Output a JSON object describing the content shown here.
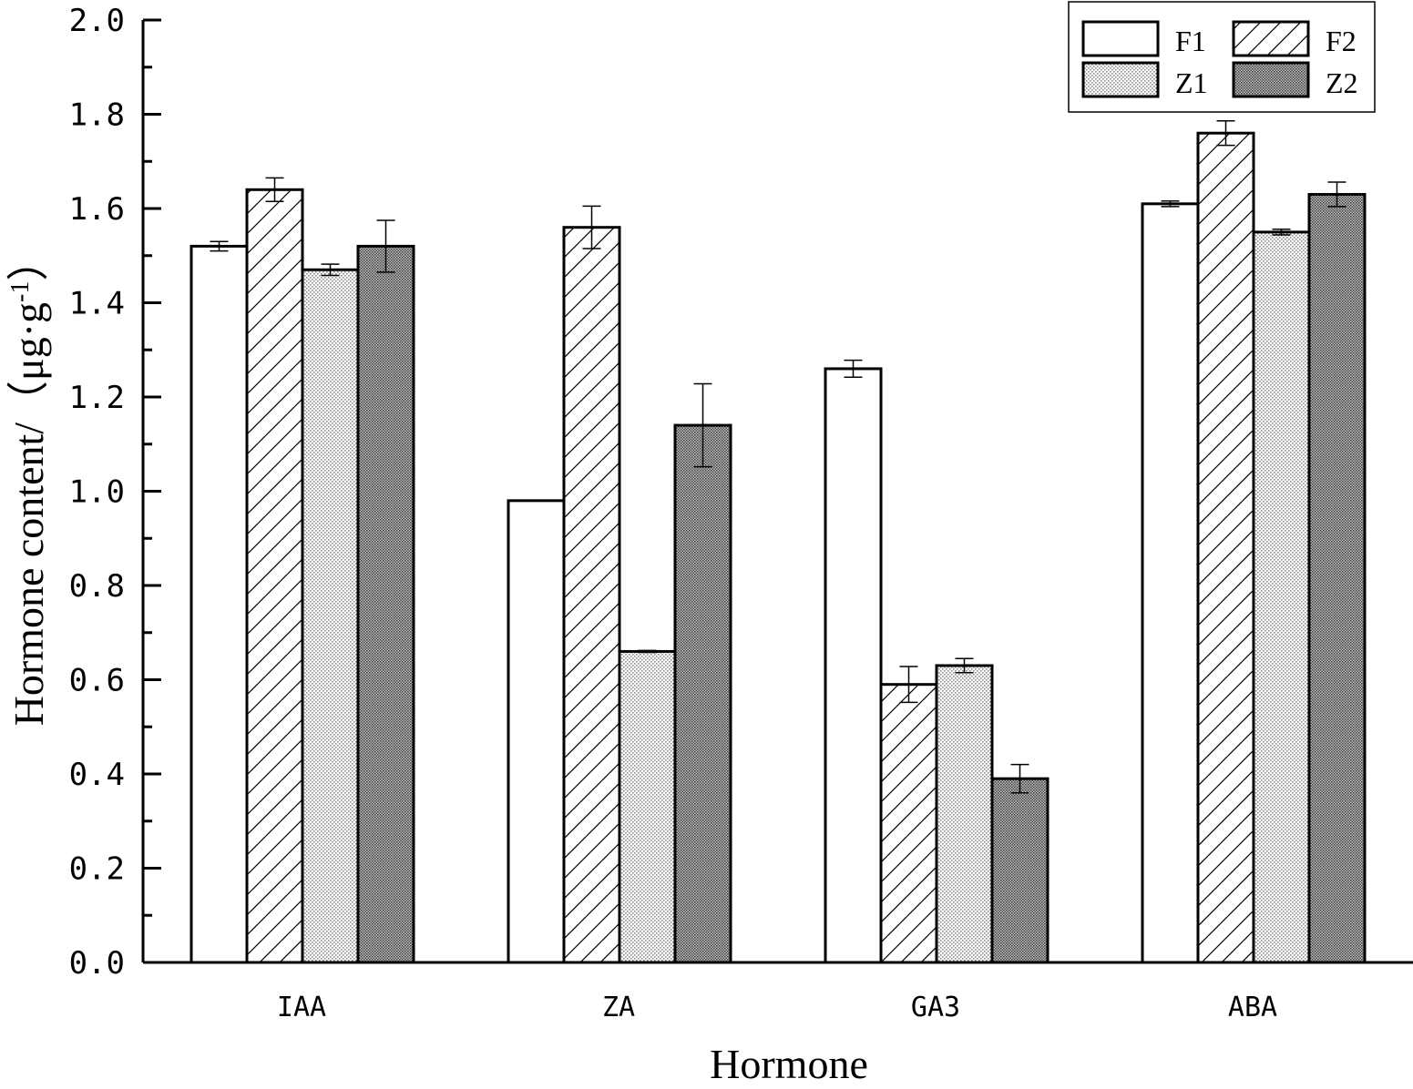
{
  "chart_data": {
    "type": "bar",
    "categories": [
      "IAA",
      "ZA",
      "GA3",
      "ABA"
    ],
    "series": [
      {
        "name": "F1",
        "pattern": "empty",
        "values": [
          1.52,
          0.98,
          1.26,
          1.61
        ],
        "errors": [
          0.01,
          0.0,
          0.018,
          0.006
        ]
      },
      {
        "name": "F2",
        "pattern": "hatch",
        "values": [
          1.64,
          1.56,
          0.59,
          1.76
        ],
        "errors": [
          0.025,
          0.045,
          0.038,
          0.026
        ]
      },
      {
        "name": "Z1",
        "pattern": "dots",
        "values": [
          1.47,
          0.66,
          0.63,
          1.55
        ],
        "errors": [
          0.012,
          0.002,
          0.015,
          0.006
        ]
      },
      {
        "name": "Z2",
        "pattern": "dense",
        "values": [
          1.52,
          1.14,
          0.39,
          1.63
        ],
        "errors": [
          0.055,
          0.088,
          0.03,
          0.026
        ]
      }
    ],
    "xlabel": "Hormone",
    "ylabel": {
      "main": "Hormone content/（μg·g",
      "superscript": "-1",
      "tail": "）"
    },
    "ylim": [
      0,
      2.0
    ],
    "yticks": [
      "0.0",
      "0.2",
      "0.4",
      "0.6",
      "0.8",
      "1.0",
      "1.2",
      "1.4",
      "1.6",
      "1.8",
      "2.0"
    ],
    "grid": false,
    "legend_position": "top-right",
    "colors": {
      "ink": "#000000",
      "background": "#ffffff"
    }
  }
}
